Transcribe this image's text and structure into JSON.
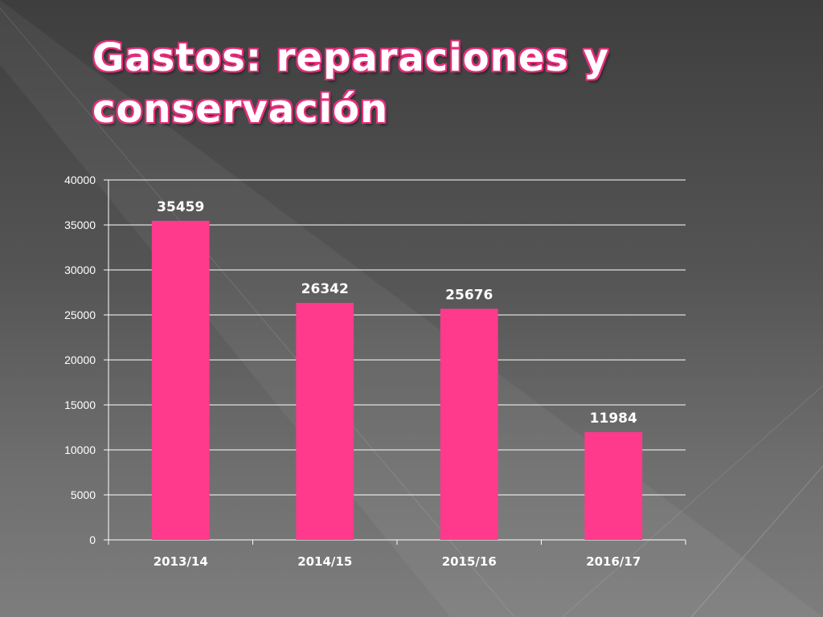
{
  "slide": {
    "title": "Gastos: reparaciones y conservación",
    "accent_color": "#ff3a8c",
    "title_outline_color": "#e62e7d"
  },
  "chart_data": {
    "type": "bar",
    "categories": [
      "2013/14",
      "2014/15",
      "2015/16",
      "2016/17"
    ],
    "values": [
      35459,
      26342,
      25676,
      11984
    ],
    "data_labels": [
      "35459",
      "26342",
      "25676",
      "11984"
    ],
    "yticks": [
      "0",
      "5000",
      "10000",
      "15000",
      "20000",
      "25000",
      "30000",
      "35000",
      "40000"
    ],
    "ylim": [
      0,
      40000
    ],
    "grid": true,
    "legend": "none",
    "bar_color": "#ff3a8c"
  }
}
